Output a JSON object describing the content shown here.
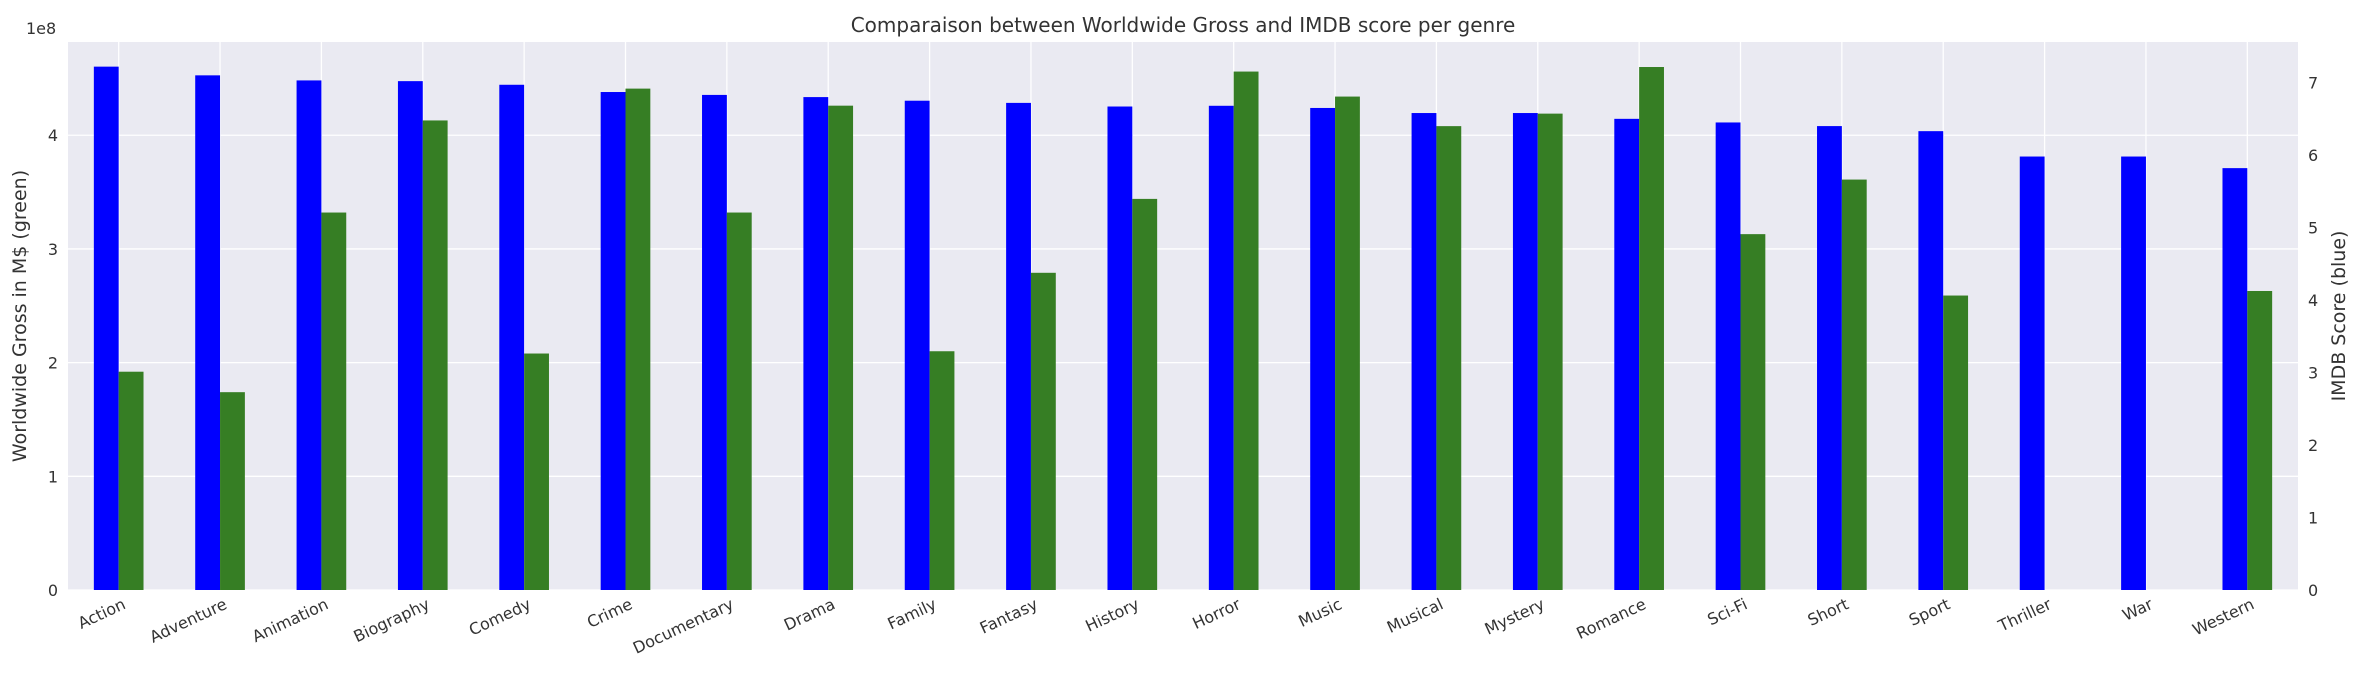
{
  "chart_data": {
    "type": "bar",
    "title": "Comparaison between Worldwide Gross and IMDB score per genre",
    "categories": [
      "Action",
      "Adventure",
      "Animation",
      "Biography",
      "Comedy",
      "Crime",
      "Documentary",
      "Drama",
      "Family",
      "Fantasy",
      "History",
      "Horror",
      "Music",
      "Musical",
      "Mystery",
      "Romance",
      "Sci-Fi",
      "Short",
      "Sport",
      "Thriller",
      "War",
      "Western"
    ],
    "series": [
      {
        "axis": "right",
        "color": "#0000ff",
        "values": [
          7.22,
          7.1,
          7.03,
          7.02,
          6.97,
          6.87,
          6.83,
          6.8,
          6.75,
          6.72,
          6.67,
          6.68,
          6.65,
          6.58,
          6.58,
          6.5,
          6.45,
          6.4,
          6.33,
          5.98,
          5.98,
          5.82
        ]
      },
      {
        "axis": "left",
        "color": "#367e24",
        "values": [
          192000000,
          174000000,
          332000000,
          413000000,
          208000000,
          441000000,
          332000000,
          426000000,
          210000000,
          279000000,
          344000000,
          456000000,
          434000000,
          408000000,
          419000000,
          460000000,
          313000000,
          361000000,
          259000000,
          0,
          0,
          263000000
        ]
      }
    ],
    "ylabel": "Worldwide Gross in M$ (green)",
    "ylabel_right": "IMDB Score (blue)",
    "yaxis_left": {
      "ylim": [
        0,
        482000000
      ],
      "ticks": [
        0,
        100000000,
        200000000,
        300000000,
        400000000
      ],
      "tick_labels": [
        "0",
        "1",
        "2",
        "3",
        "4"
      ],
      "offset_label": "1e8"
    },
    "yaxis_right": {
      "ylim": [
        0,
        7.56
      ],
      "ticks": [
        0,
        1,
        2,
        3,
        4,
        5,
        6,
        7
      ],
      "tick_labels": [
        "0",
        "1",
        "2",
        "3",
        "4",
        "5",
        "6",
        "7"
      ]
    },
    "grid": true,
    "legend": "none"
  },
  "colors": {
    "plot_background": "#eaeaf2",
    "grid": "#ffffff"
  }
}
